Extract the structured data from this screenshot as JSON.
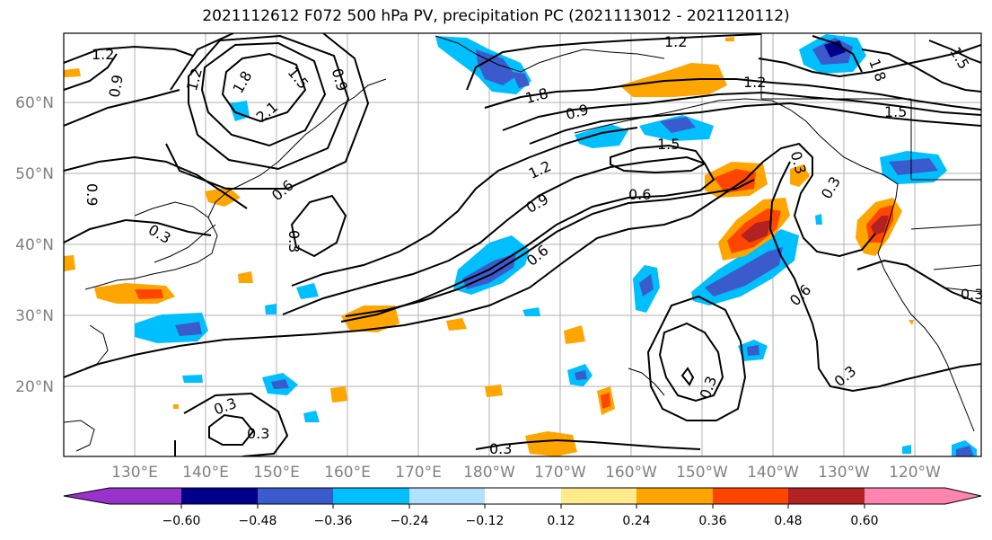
{
  "title": "2021112612 F072 500 hPa PV, precipitation PC (2021113012 - 2021120112)",
  "map": {
    "lat_labels": [
      "60°N",
      "50°N",
      "40°N",
      "30°N",
      "20°N"
    ],
    "lon_labels": [
      "130°E",
      "140°E",
      "150°E",
      "160°E",
      "170°E",
      "180°W",
      "170°W",
      "160°W",
      "150°W",
      "140°W",
      "130°W",
      "120°W"
    ],
    "contour_labels": [
      "1.2",
      "0.9",
      "1.2",
      "1.8",
      "1.5",
      "0.9",
      "2.1",
      "0.6",
      "0.9",
      "0.3",
      "0.3",
      "1.2",
      "1.8",
      "1.2",
      "0.9",
      "1.5",
      "1.2",
      "1.5",
      "0.9",
      "0.6",
      "0.6",
      "0.3",
      "0.3",
      "0.6",
      "0.3",
      "0.3",
      "0.3",
      "0.3",
      "0.3",
      "1.8",
      "1.5",
      "0.3"
    ]
  },
  "colorbar": {
    "ticks": [
      "−0.60",
      "−0.48",
      "−0.36",
      "−0.24",
      "−0.12",
      "0.12",
      "0.24",
      "0.36",
      "0.48",
      "0.60"
    ],
    "colors": [
      "#9932cc",
      "#00008b",
      "#3b5bcc",
      "#00bfff",
      "#b0e2ff",
      "#ffffff",
      "#ffeb8b",
      "#ffa500",
      "#ff4500",
      "#b22222",
      "#ff85b0"
    ]
  }
}
